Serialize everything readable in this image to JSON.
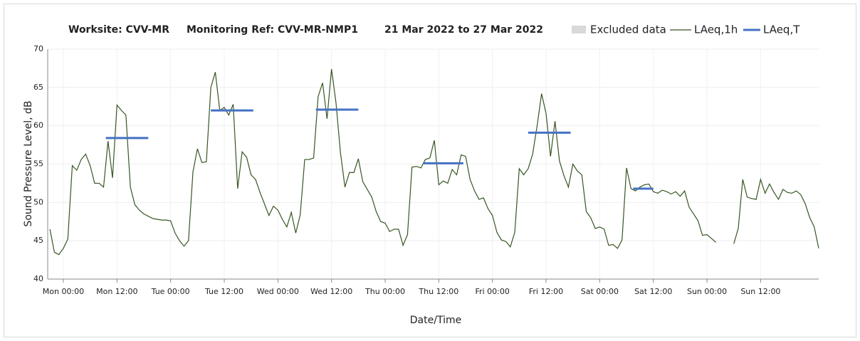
{
  "chart_data": {
    "type": "line",
    "title_parts": [
      "Worksite: CVV-MR",
      "Monitoring Ref: CVV-MR-NMP1",
      "21 Mar 2022 to 27 Mar 2022"
    ],
    "x_label": "Date/Time",
    "y_label": "Sound Pressure Level, dB",
    "excluded_data": {
      "name": "Excluded data",
      "color": "#d9d9d9"
    },
    "xlim": [
      -3.5,
      169
    ],
    "xticks": [
      {
        "value": 0,
        "label": "Mon 00:00"
      },
      {
        "value": 12,
        "label": "Mon 12:00"
      },
      {
        "value": 24,
        "label": "Tue 00:00"
      },
      {
        "value": 36,
        "label": "Tue 12:00"
      },
      {
        "value": 48,
        "label": "Wed 00:00"
      },
      {
        "value": 60,
        "label": "Wed 12:00"
      },
      {
        "value": 72,
        "label": "Thu 00:00"
      },
      {
        "value": 84,
        "label": "Thu 12:00"
      },
      {
        "value": 96,
        "label": "Fri 00:00"
      },
      {
        "value": 108,
        "label": "Fri 12:00"
      },
      {
        "value": 120,
        "label": "Sat 00:00"
      },
      {
        "value": 132,
        "label": "Sat 12:00"
      },
      {
        "value": 144,
        "label": "Sun 00:00"
      },
      {
        "value": 156,
        "label": "Sun 12:00"
      }
    ],
    "ylim": [
      40,
      70
    ],
    "yticks": [
      40,
      45,
      50,
      55,
      60,
      65,
      70
    ],
    "grid": true,
    "series": [
      {
        "name": "LAeq,1h",
        "color": "#375623",
        "x": [
          -3,
          -2,
          -1,
          0,
          1,
          2,
          3,
          4,
          5,
          6,
          7,
          8,
          9,
          10,
          11,
          12,
          13,
          14,
          15,
          16,
          17,
          18,
          19,
          20,
          21,
          22,
          23,
          24,
          25,
          26,
          27,
          28,
          29,
          30,
          31,
          32,
          33,
          34,
          35,
          36,
          37,
          38,
          39,
          40,
          41,
          42,
          43,
          44,
          45,
          46,
          47,
          48,
          49,
          50,
          51,
          52,
          53,
          54,
          55,
          56,
          57,
          58,
          59,
          60,
          61,
          62,
          63,
          64,
          65,
          66,
          67,
          68,
          69,
          70,
          71,
          72,
          73,
          74,
          75,
          76,
          77,
          78,
          79,
          80,
          81,
          82,
          83,
          84,
          85,
          86,
          87,
          88,
          89,
          90,
          91,
          92,
          93,
          94,
          95,
          96,
          97,
          98,
          99,
          100,
          101,
          102,
          103,
          104,
          105,
          106,
          107,
          108,
          109,
          110,
          111,
          112,
          113,
          114,
          115,
          116,
          117,
          118,
          119,
          120,
          121,
          122,
          123,
          124,
          125,
          126,
          127,
          128,
          129,
          130,
          131,
          132,
          133,
          134,
          135,
          136,
          137,
          138,
          139,
          140,
          141,
          142,
          143,
          144,
          145,
          146,
          147,
          148,
          149,
          150,
          151,
          152,
          153,
          154,
          155,
          156,
          157,
          158,
          159,
          160,
          161,
          162,
          163,
          164,
          165,
          166,
          167,
          168,
          169
        ],
        "values": [
          46.5,
          43.5,
          43.2,
          44,
          45.2,
          54.8,
          54.2,
          55.6,
          56.3,
          54.8,
          52.5,
          52.5,
          52,
          58,
          53.2,
          62.7,
          62,
          61.4,
          52,
          49.7,
          49,
          48.5,
          48.2,
          47.9,
          47.8,
          47.7,
          47.7,
          47.6,
          46,
          45,
          44.3,
          45,
          54,
          57,
          55.2,
          55.3,
          65,
          67,
          62,
          62.4,
          61.4,
          62.8,
          51.8,
          56.6,
          55.9,
          53.6,
          53,
          51.3,
          49.8,
          48.3,
          49.5,
          49,
          47.8,
          46.8,
          48.7,
          46,
          48.4,
          55.6,
          55.6,
          55.8,
          63.8,
          65.6,
          60.9,
          67.4,
          63,
          56.5,
          52,
          53.9,
          53.9,
          55.7,
          52.7,
          51.7,
          50.7,
          48.8,
          47.5,
          47.3,
          46.2,
          46.5,
          46.5,
          44.4,
          45.8,
          54.6,
          54.7,
          54.5,
          55.6,
          55.8,
          58.1,
          52.3,
          52.8,
          52.5,
          54.3,
          53.6,
          56.2,
          56,
          53,
          51.5,
          50.4,
          50.6,
          49.2,
          48.3,
          46.1,
          45.1,
          44.9,
          44.2,
          46.1,
          54.4,
          53.6,
          54.4,
          56.3,
          60,
          64.2,
          61.6,
          56,
          60.6,
          55.4,
          53.5,
          52,
          55,
          54.1,
          53.6,
          48.8,
          48,
          46.6,
          46.8,
          46.5,
          44.4,
          44.5,
          44,
          45.1,
          54.5,
          51.8,
          51.5,
          52,
          52.3,
          52.4,
          51.4,
          51.2,
          51.6,
          51.4,
          51.1,
          51.4,
          50.8,
          51.5,
          49.4,
          48.5,
          47.6,
          45.7,
          45.8,
          45.3,
          44.8,
          null,
          null,
          null,
          44.6,
          46.6,
          53,
          50.7,
          50.5,
          50.4,
          53,
          51.2,
          52.4,
          51.3,
          50.4,
          51.7,
          51.3,
          51.2,
          51.5,
          51,
          49.8,
          48,
          46.8,
          44
        ]
      },
      {
        "name": "LAeq,T",
        "color": "#4472c4",
        "x": [
          9.5,
          19,
          19,
          33,
          42.5,
          42.5,
          56.5,
          66,
          66,
          80.5,
          89.5,
          89.5,
          104,
          113.5,
          113.5,
          127.5,
          132
        ],
        "values": [
          58.4,
          58.4,
          null,
          62,
          62,
          null,
          62.1,
          62.1,
          null,
          55.1,
          55.1,
          null,
          59.1,
          59.1,
          null,
          51.8,
          51.8
        ]
      }
    ]
  }
}
